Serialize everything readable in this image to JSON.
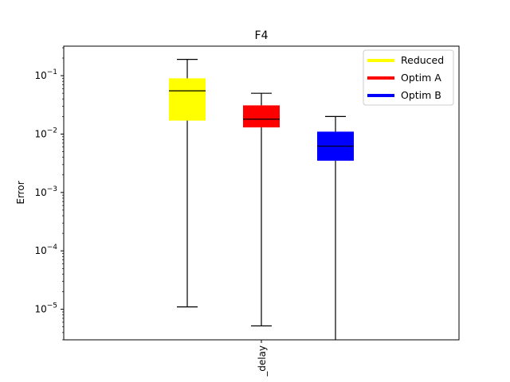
{
  "chart_data": {
    "type": "box",
    "title": "F4",
    "xlabel": "",
    "ylabel": "Error",
    "yscale": "log",
    "ylim": [
      3e-06,
      0.32
    ],
    "yticks": [
      {
        "value": 1e-05,
        "base": "10",
        "exp": "−5"
      },
      {
        "value": 0.0001,
        "base": "10",
        "exp": "−4"
      },
      {
        "value": 0.001,
        "base": "10",
        "exp": "−3"
      },
      {
        "value": 0.01,
        "base": "10",
        "exp": "−2"
      },
      {
        "value": 0.1,
        "base": "10",
        "exp": "−1"
      }
    ],
    "category_label": "_delay",
    "legend_position": "top-right",
    "grid": false,
    "series": [
      {
        "name": "Reduced",
        "color": "#ffff00",
        "whisker_low": 1.1e-05,
        "q1": 0.017,
        "median": 0.055,
        "q3": 0.09,
        "whisker_high": 0.19
      },
      {
        "name": "Optim A",
        "color": "#ff0000",
        "whisker_low": 5.2e-06,
        "q1": 0.013,
        "median": 0.018,
        "q3": 0.031,
        "whisker_high": 0.05
      },
      {
        "name": "Optim B",
        "color": "#0000ff",
        "whisker_low": 3e-06,
        "q1": 0.0035,
        "median": 0.0062,
        "q3": 0.011,
        "whisker_high": 0.02
      }
    ]
  }
}
